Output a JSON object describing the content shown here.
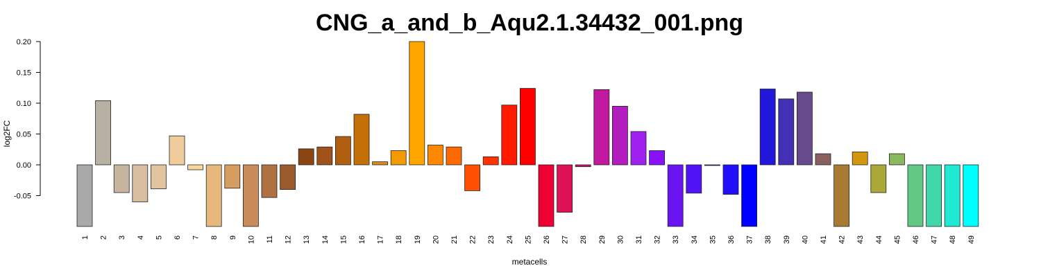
{
  "chart_data": {
    "type": "bar",
    "title": "CNG_a_and_b_Aqu2.1.34432_001.png",
    "xlabel": "metacells",
    "ylabel": "log2FC",
    "ylim": [
      -0.1,
      0.2
    ],
    "yticks": [
      "0.20",
      "0.15",
      "0.10",
      "0.05",
      "0.00",
      "-0.05"
    ],
    "ytick_values": [
      0.2,
      0.15,
      0.1,
      0.05,
      0.0,
      -0.05
    ],
    "categories": [
      "1",
      "2",
      "3",
      "4",
      "5",
      "6",
      "7",
      "8",
      "9",
      "10",
      "11",
      "12",
      "13",
      "14",
      "15",
      "16",
      "17",
      "18",
      "19",
      "20",
      "21",
      "22",
      "23",
      "24",
      "25",
      "26",
      "27",
      "28",
      "29",
      "30",
      "31",
      "32",
      "33",
      "34",
      "35",
      "36",
      "37",
      "38",
      "39",
      "40",
      "41",
      "42",
      "43",
      "44",
      "45",
      "46",
      "47",
      "48",
      "49"
    ],
    "values": [
      -0.1,
      0.104,
      -0.045,
      -0.06,
      -0.039,
      0.047,
      -0.008,
      -0.1,
      -0.038,
      -0.1,
      -0.053,
      -0.04,
      0.026,
      0.029,
      0.046,
      0.082,
      0.005,
      0.023,
      0.2,
      0.032,
      0.029,
      -0.042,
      0.013,
      0.097,
      0.124,
      -0.1,
      -0.077,
      -0.003,
      0.122,
      0.095,
      0.054,
      0.023,
      -0.1,
      -0.046,
      0.0,
      -0.048,
      -0.1,
      0.123,
      0.107,
      0.118,
      0.018,
      -0.1,
      0.021,
      -0.045,
      0.018,
      -0.1,
      -0.1,
      -0.1,
      -0.1
    ],
    "colors": [
      "#a9a9a9",
      "#b9b0a4",
      "#c6b49f",
      "#d7bea0",
      "#e2c49e",
      "#f0cc9d",
      "#fad6a0",
      "#e7b87d",
      "#d69d61",
      "#c98b5a",
      "#b07142",
      "#9c5b2c",
      "#8b4513",
      "#a0521a",
      "#b05f10",
      "#c47008",
      "#e08c14",
      "#f29a00",
      "#ffa500",
      "#ff8800",
      "#ff6a00",
      "#ff4f00",
      "#ff3300",
      "#ff1a00",
      "#ff0000",
      "#ee0033",
      "#dd1155",
      "#cc1177",
      "#c0189e",
      "#b31cbf",
      "#a020f0",
      "#8a12f8",
      "#6a14f0",
      "#5212f6",
      "#3a10fa",
      "#2010fa",
      "#0000ff",
      "#2218dc",
      "#4430b4",
      "#664a8c",
      "#886060",
      "#a87a32",
      "#d4960e",
      "#aaa838",
      "#8ab85c",
      "#62c882",
      "#40d8a8",
      "#20e8d2",
      "#00ffff"
    ],
    "grid": false,
    "legend": "none"
  }
}
